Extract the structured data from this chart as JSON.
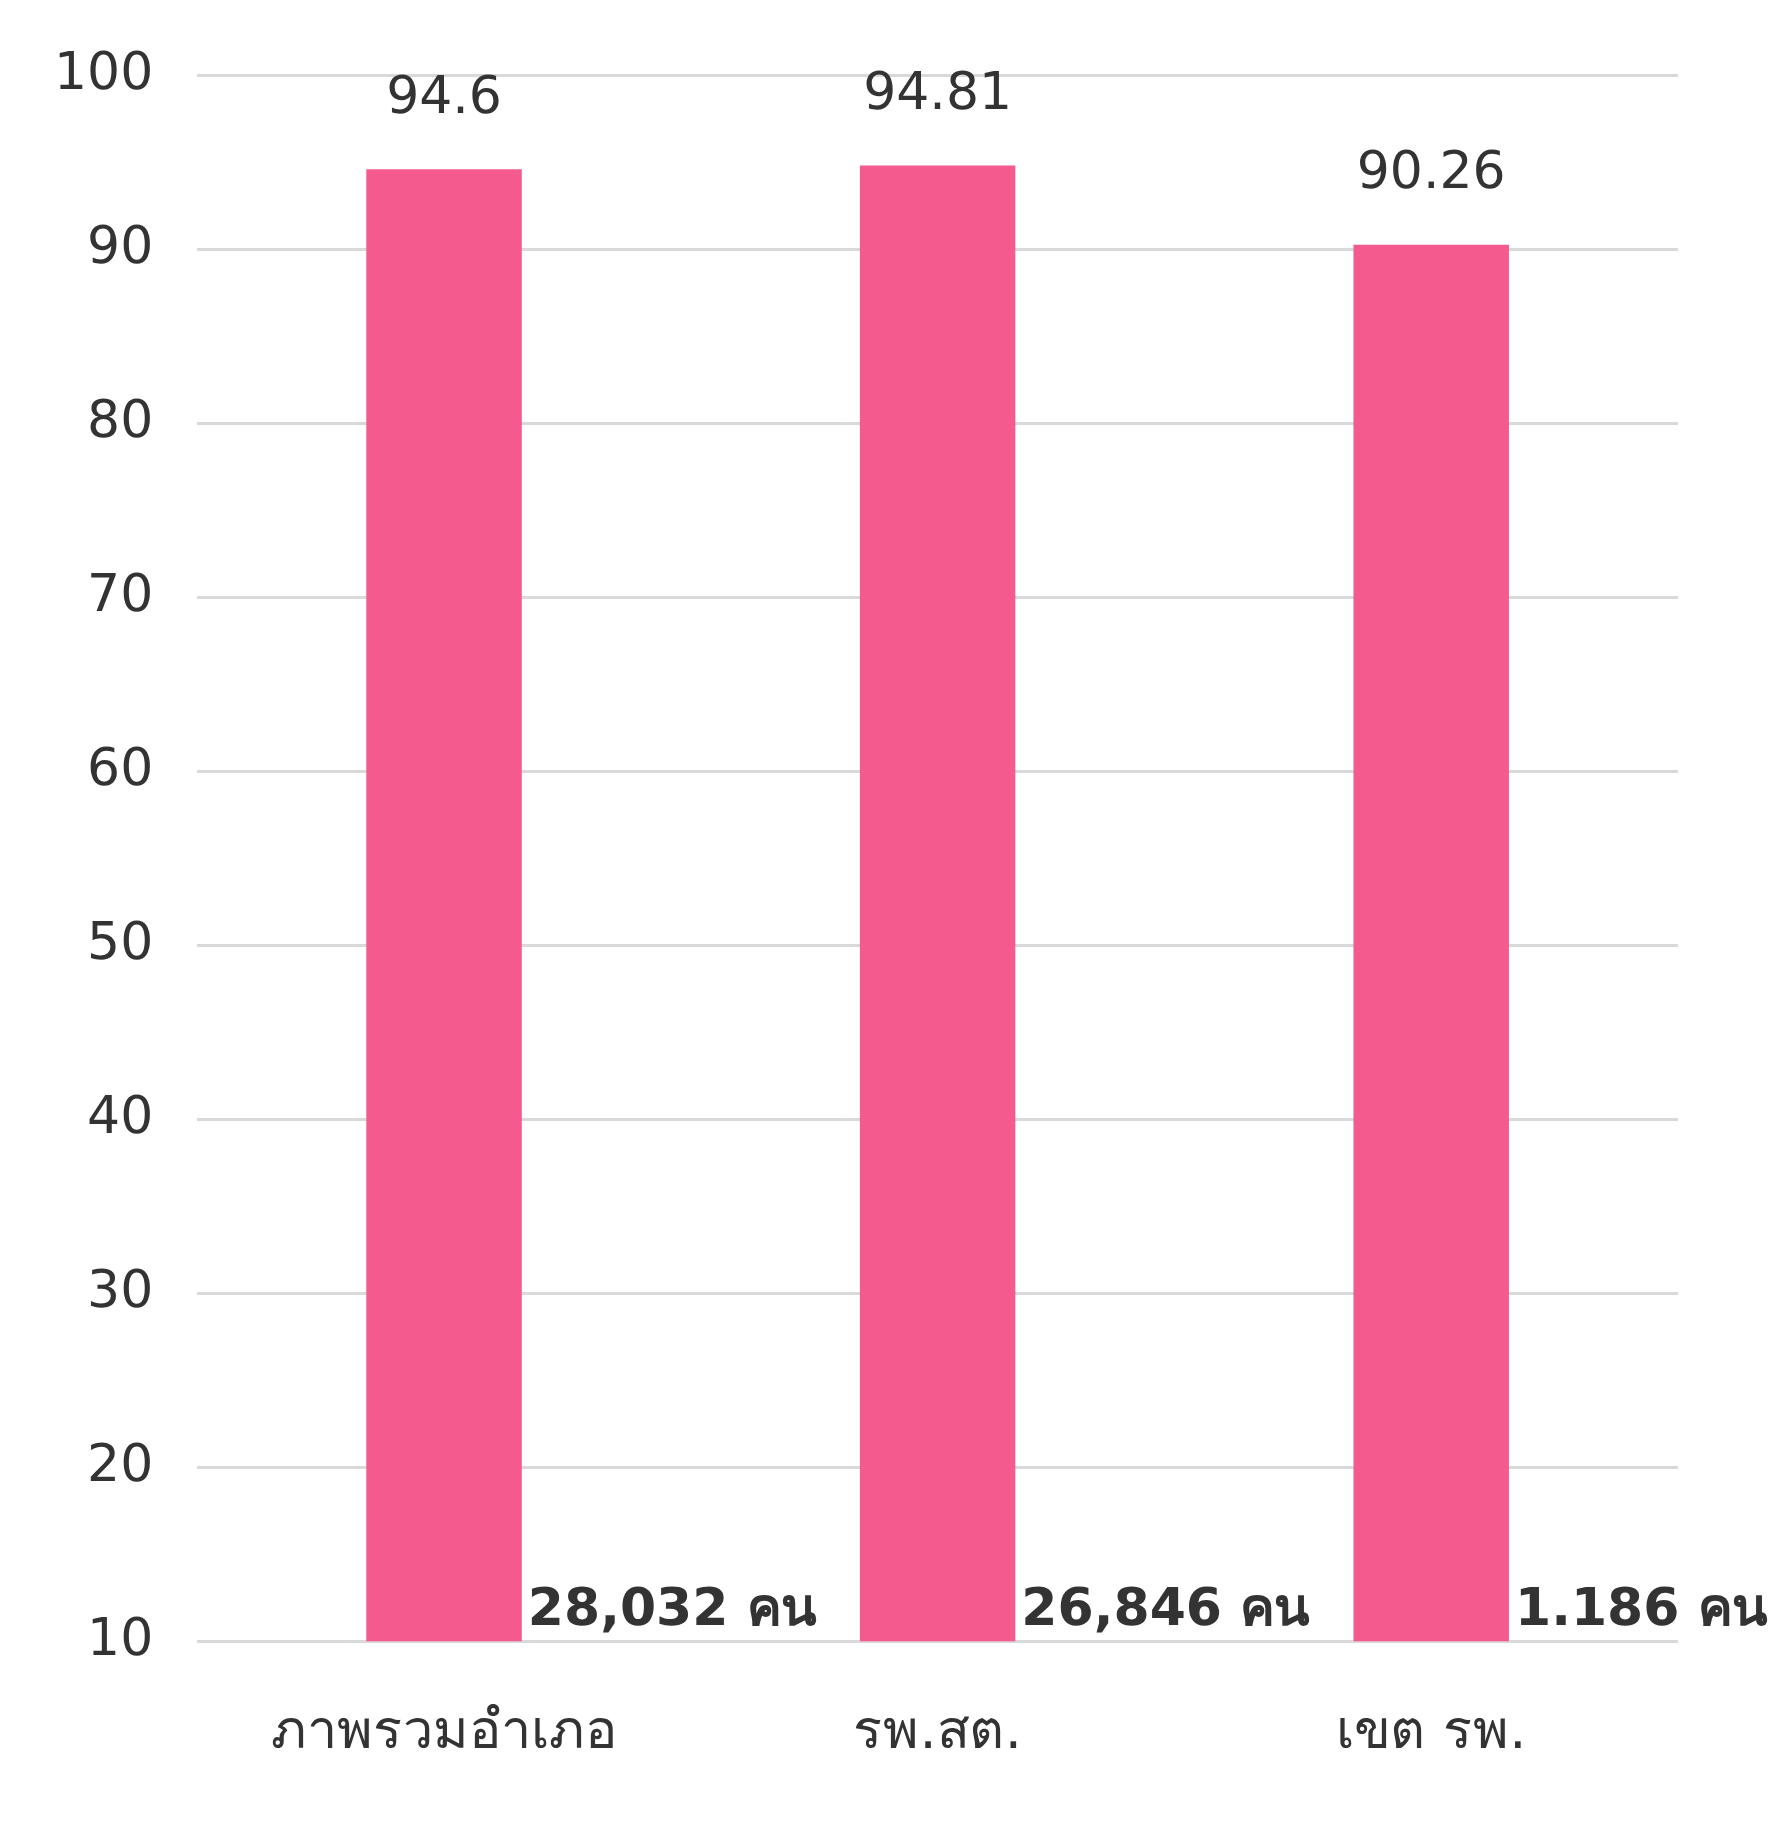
{
  "chart_data": {
    "type": "bar",
    "categories": [
      "ภาพรวมอำเภอ",
      "รพ.สต.",
      "เขต รพ."
    ],
    "values": [
      94.6,
      94.81,
      90.26
    ],
    "color": "#f45a8d",
    "ylim": [
      10,
      100
    ],
    "yticks": [
      10,
      20,
      30,
      40,
      50,
      60,
      70,
      80,
      90,
      100
    ],
    "grid": "y",
    "legend": false,
    "data_labels": true,
    "annotations": [
      "28,032 คน",
      "26,846 คน",
      "1.186 คน"
    ]
  }
}
